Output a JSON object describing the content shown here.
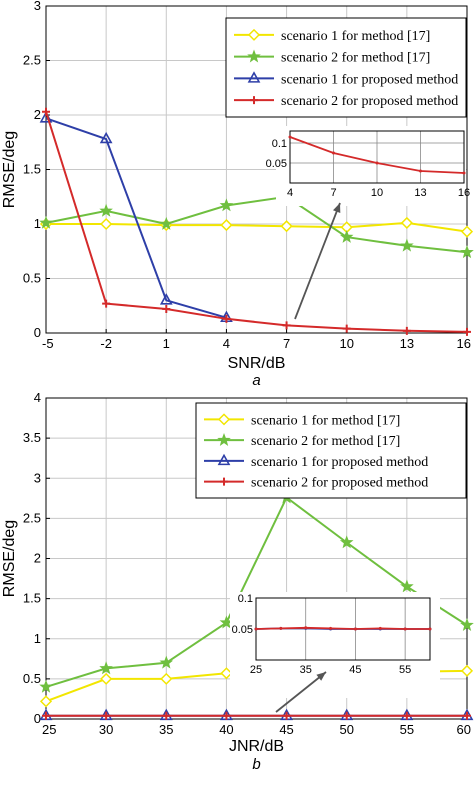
{
  "colors": {
    "yellow": "#f2e600",
    "green": "#6fbf3f",
    "blue": "#2e3fa8",
    "red": "#d42a2a",
    "grid": "#c8c8c8",
    "inset_arrow": "#555555"
  },
  "chart_data": [
    {
      "type": "line",
      "panel_label": "a",
      "xlabel": "SNR/dB",
      "ylabel": "RMSE/deg",
      "x": [
        -5,
        -2,
        1,
        4,
        7,
        10,
        13,
        16
      ],
      "xlim": [
        -5,
        16
      ],
      "ylim": [
        0,
        3
      ],
      "xticks": [
        "-5",
        "-2",
        "1",
        "4",
        "7",
        "10",
        "13",
        "16"
      ],
      "yticks": [
        "0",
        "0.5",
        "1",
        "1.5",
        "2",
        "2.5",
        "3"
      ],
      "grid": true,
      "legend_position": "top-right",
      "series": [
        {
          "name": "scenario 1 for method [17]",
          "color": "yellow",
          "marker": "diamond",
          "values": [
            1.0,
            1.0,
            0.99,
            0.99,
            0.98,
            0.97,
            1.01,
            0.93
          ]
        },
        {
          "name": "scenario 2 for method [17]",
          "color": "green",
          "marker": "star",
          "values": [
            1.01,
            1.12,
            1.0,
            1.17,
            1.25,
            0.88,
            0.8,
            0.74
          ]
        },
        {
          "name": "scenario 1 for proposed method",
          "color": "blue",
          "marker": "triangle",
          "values": [
            1.97,
            1.78,
            0.3,
            0.14,
            null,
            null,
            null,
            null
          ]
        },
        {
          "name": "scenario 2 for proposed method",
          "color": "red",
          "marker": "plus",
          "values": [
            2.03,
            0.27,
            0.22,
            0.13,
            0.07,
            0.04,
            0.02,
            0.01
          ]
        }
      ],
      "inset": {
        "x": [
          4,
          7,
          10,
          13,
          16
        ],
        "xticks": [
          "4",
          "7",
          "10",
          "13",
          "16"
        ],
        "yticks": [
          "0.05",
          "0.1"
        ],
        "ylim": [
          0,
          0.13
        ],
        "series": [
          {
            "color": "red",
            "values": [
              0.115,
              0.075,
              0.05,
              0.03,
              0.025
            ]
          }
        ]
      }
    },
    {
      "type": "line",
      "panel_label": "b",
      "xlabel": "JNR/dB",
      "ylabel": "RMSE/deg",
      "x": [
        25,
        30,
        35,
        40,
        45,
        50,
        55,
        60
      ],
      "xlim": [
        25,
        60
      ],
      "ylim": [
        0,
        4
      ],
      "xticks": [
        "25",
        "30",
        "35",
        "40",
        "45",
        "50",
        "55",
        "60"
      ],
      "yticks": [
        "0",
        "0.5",
        "1",
        "1.5",
        "2",
        "2.5",
        "3",
        "3.5",
        "4"
      ],
      "grid": true,
      "legend_position": "top-right",
      "series": [
        {
          "name": "scenario 1 for method [17]",
          "color": "yellow",
          "marker": "diamond",
          "values": [
            0.22,
            0.5,
            0.5,
            0.57,
            0.57,
            0.59,
            0.59,
            0.6
          ]
        },
        {
          "name": "scenario 2 for method [17]",
          "color": "green",
          "marker": "star",
          "values": [
            0.4,
            0.63,
            0.7,
            1.2,
            2.76,
            2.2,
            1.65,
            1.17
          ]
        },
        {
          "name": "scenario 1 for proposed method",
          "color": "blue",
          "marker": "triangle",
          "values": [
            0.04,
            0.04,
            0.04,
            0.04,
            0.04,
            0.04,
            0.04,
            0.04
          ]
        },
        {
          "name": "scenario 2 for proposed method",
          "color": "red",
          "marker": "plus",
          "values": [
            0.04,
            0.04,
            0.04,
            0.04,
            0.04,
            0.04,
            0.04,
            0.04
          ]
        }
      ],
      "inset": {
        "x": [
          25,
          30,
          35,
          40,
          45,
          50,
          55,
          60
        ],
        "xticks": [
          "25",
          "35",
          "45",
          "55"
        ],
        "yticks": [
          "0.05",
          "0.1"
        ],
        "ylim": [
          0,
          0.1
        ],
        "series": [
          {
            "color": "blue",
            "values": [
              0.05,
              0.051,
              0.051,
              0.05,
              0.05,
              0.05,
              0.05,
              0.05
            ]
          },
          {
            "color": "red",
            "values": [
              0.05,
              0.051,
              0.052,
              0.051,
              0.05,
              0.051,
              0.05,
              0.05
            ]
          }
        ]
      }
    }
  ]
}
